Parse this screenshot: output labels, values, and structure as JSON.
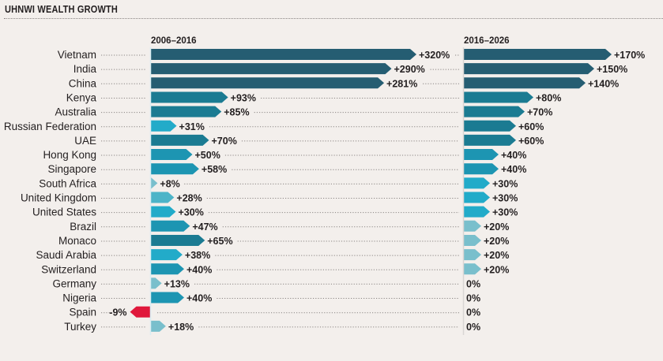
{
  "chart_data": {
    "type": "bar",
    "title": "UHNWI WEALTH GROWTH",
    "orientation": "horizontal",
    "categories": [
      "Vietnam",
      "India",
      "China",
      "Kenya",
      "Australia",
      "Russian Federation",
      "UAE",
      "Hong Kong",
      "Singapore",
      "South Africa",
      "United Kingdom",
      "United States",
      "Brazil",
      "Monaco",
      "Saudi Arabia",
      "Switzerland",
      "Germany",
      "Nigeria",
      "Spain",
      "Turkey"
    ],
    "series": [
      {
        "name": "2006–2016",
        "values": [
          320,
          290,
          281,
          93,
          85,
          31,
          70,
          50,
          58,
          8,
          28,
          30,
          47,
          65,
          38,
          40,
          13,
          40,
          -9,
          18
        ],
        "labels": [
          "+320%",
          "+290%",
          "+281%",
          "+93%",
          "+85%",
          "+31%",
          "+70%",
          "+50%",
          "+58%",
          "+8%",
          "+28%",
          "+30%",
          "+47%",
          "+65%",
          "+38%",
          "+40%",
          "+13%",
          "+40%",
          "-9%",
          "+18%"
        ]
      },
      {
        "name": "2016–2026",
        "values": [
          170,
          150,
          140,
          80,
          70,
          60,
          60,
          40,
          40,
          30,
          30,
          30,
          20,
          20,
          20,
          20,
          0,
          0,
          0,
          0
        ],
        "labels": [
          "+170%",
          "+150%",
          "+140%",
          "+80%",
          "+70%",
          "+60%",
          "+60%",
          "+40%",
          "+40%",
          "+30%",
          "+30%",
          "+30%",
          "+20%",
          "+20%",
          "+20%",
          "+20%",
          "0%",
          "0%",
          "0%",
          "0%"
        ]
      }
    ],
    "unit": "%",
    "xlabel": "",
    "ylabel": "",
    "grid": false,
    "legend": "none",
    "colors": {
      "high": "#255d72",
      "mid_high": "#1b7b92",
      "mid": "#1d95b2",
      "bright": "#22abc9",
      "light": "#4cb4c8",
      "pale": "#79bfcc",
      "negative": "#e0183b",
      "background": "#f3efec",
      "text": "#231f20"
    }
  }
}
